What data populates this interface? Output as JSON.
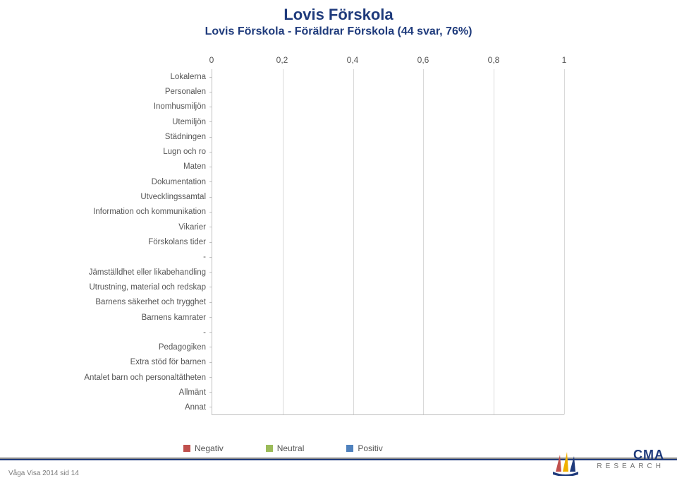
{
  "title": "Lovis Förskola",
  "subtitle": "Lovis Förskola - Föräldrar Förskola (44 svar, 76%)",
  "title_color": "#1f3b7c",
  "title_fontsize": 22,
  "subtitle_fontsize": 16,
  "chart": {
    "type": "bar",
    "orientation": "horizontal",
    "xlim": [
      0,
      1
    ],
    "xticks": [
      0,
      0.2,
      0.4,
      0.6,
      0.8,
      1
    ],
    "xtick_labels": [
      "0",
      "0,2",
      "0,4",
      "0,6",
      "0,8",
      "1"
    ],
    "background_color": "#ffffff",
    "grid_color": "#d9d9d9",
    "axis_color": "#bfbfbf",
    "label_fontsize": 11.5,
    "label_color": "#555555",
    "axis_label_fontsize": 12,
    "categories": [
      "Lokalerna",
      "Personalen",
      "Inomhusmiljön",
      "Utemiljön",
      "Städningen",
      "Lugn och ro",
      "Maten",
      "Dokumentation",
      "Utvecklingssamtal",
      "Information och kommunikation",
      "Vikarier",
      "Förskolans tider",
      "-",
      "Jämställdhet eller likabehandling",
      "Utrustning, material och redskap",
      "Barnens säkerhet och trygghet",
      "Barnens kamrater",
      "-",
      "Pedagogiken",
      "Extra stöd för barnen",
      "Antalet barn och personaltätheten",
      "Allmänt",
      "Annat"
    ],
    "series": [
      {
        "name": "Negativ",
        "color": "#c0504d",
        "values": [
          0,
          0,
          0,
          0,
          0,
          0,
          0,
          0,
          0,
          0,
          0,
          0,
          0,
          0,
          0,
          0,
          0,
          0,
          0,
          0,
          0,
          0,
          0
        ]
      },
      {
        "name": "Neutral",
        "color": "#9bbb59",
        "values": [
          0,
          0,
          0,
          0,
          0,
          0,
          0,
          0,
          0,
          0,
          0,
          0,
          0,
          0,
          0,
          0,
          0,
          0,
          0,
          0,
          0,
          0,
          0
        ]
      },
      {
        "name": "Positiv",
        "color": "#4f81bd",
        "values": [
          0,
          0,
          0,
          0,
          0,
          0,
          0,
          0,
          0,
          0,
          0,
          0,
          0,
          0,
          0,
          0,
          0,
          0,
          0,
          0,
          0,
          0,
          0
        ]
      }
    ]
  },
  "legend": {
    "items": [
      {
        "label": "Negativ",
        "color": "#c0504d"
      },
      {
        "label": "Neutral",
        "color": "#9bbb59"
      },
      {
        "label": "Positiv",
        "color": "#4f81bd"
      }
    ],
    "fontsize": 12
  },
  "footer": {
    "text": "Våga Visa 2014 sid 14",
    "fontsize": 10,
    "color": "#7a7a7a",
    "line_top_color": "#8a8a8a",
    "line_bottom_color": "#1f3b7c"
  },
  "logo": {
    "top": "CMA",
    "bottom": "RESEARCH",
    "text_color": "#1f3b7c",
    "sub_color": "#707070",
    "sail_colors": [
      "#c0504d",
      "#f0b000",
      "#1f3b7c"
    ]
  }
}
